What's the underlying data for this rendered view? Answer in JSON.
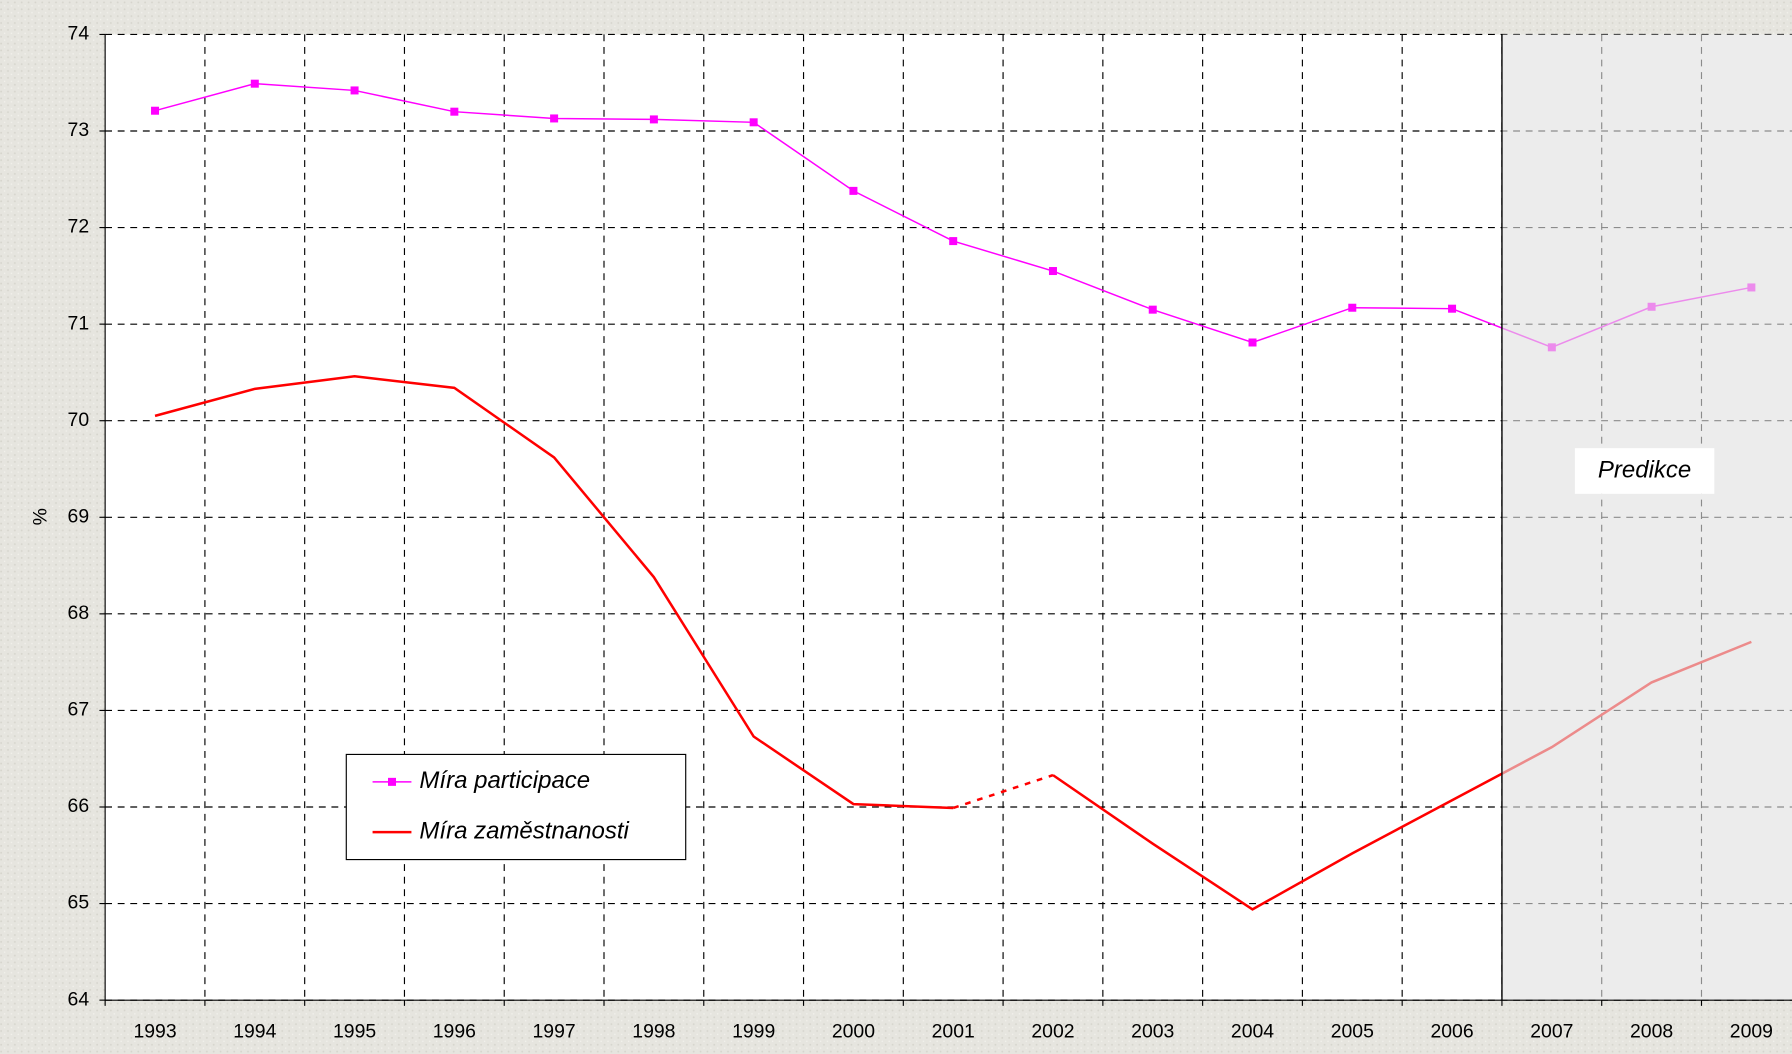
{
  "chart_data": {
    "type": "line",
    "y_label": "%",
    "categories": [
      "1993",
      "1994",
      "1995",
      "1996",
      "1997",
      "1998",
      "1999",
      "2000",
      "2001",
      "2002",
      "2003",
      "2004",
      "2005",
      "2006",
      "2007",
      "2008",
      "2009"
    ],
    "series": [
      {
        "name": "Míra participace",
        "color": "#ff00ff",
        "marker": "square",
        "values": [
          73.21,
          73.49,
          73.42,
          73.2,
          73.13,
          73.12,
          73.09,
          72.38,
          71.86,
          71.55,
          71.15,
          70.81,
          71.17,
          71.16,
          70.76,
          71.18,
          71.38
        ]
      },
      {
        "name": "Míra zaměstnanosti",
        "color": "#ff0000",
        "marker": "none",
        "dashed_segments": [
          [
            8,
            9
          ]
        ],
        "values": [
          70.05,
          70.33,
          70.46,
          70.34,
          69.62,
          68.38,
          66.73,
          66.03,
          65.99,
          66.33,
          65.62,
          64.94,
          65.52,
          66.07,
          66.62,
          67.29,
          67.71
        ]
      }
    ],
    "ylim": [
      64,
      74
    ],
    "yticks": [
      64,
      65,
      66,
      67,
      68,
      69,
      70,
      71,
      72,
      73,
      74
    ],
    "grid": true,
    "forecast_start": "2007",
    "annotation": "Predikce"
  }
}
